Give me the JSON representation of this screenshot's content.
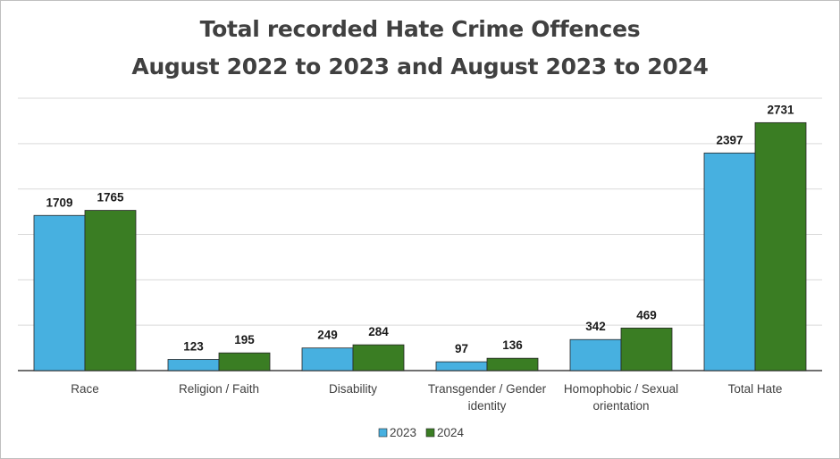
{
  "chart_data": {
    "type": "bar",
    "title": "Total recorded Hate Crime Offences",
    "subtitle": "August 2022 to 2023 and August 2023 to 2024",
    "categories": [
      "Race",
      "Religion / Faith",
      "Disability",
      "Transgender / Gender identity",
      "Homophobic / Sexual orientation",
      "Total Hate"
    ],
    "category_lines": [
      [
        "Race"
      ],
      [
        "Religion / Faith"
      ],
      [
        "Disability"
      ],
      [
        "Transgender / Gender",
        "identity"
      ],
      [
        "Homophobic / Sexual",
        "orientation"
      ],
      [
        "Total Hate"
      ]
    ],
    "series": [
      {
        "name": "2023",
        "values": [
          1709,
          123,
          249,
          97,
          342,
          2397
        ],
        "color": "#47b0e0"
      },
      {
        "name": "2024",
        "values": [
          1765,
          195,
          284,
          136,
          469,
          2731
        ],
        "color": "#3a7d23"
      }
    ],
    "ylim": [
      0,
      3000
    ],
    "grid": true,
    "legend_position": "bottom",
    "data_labels": true
  }
}
